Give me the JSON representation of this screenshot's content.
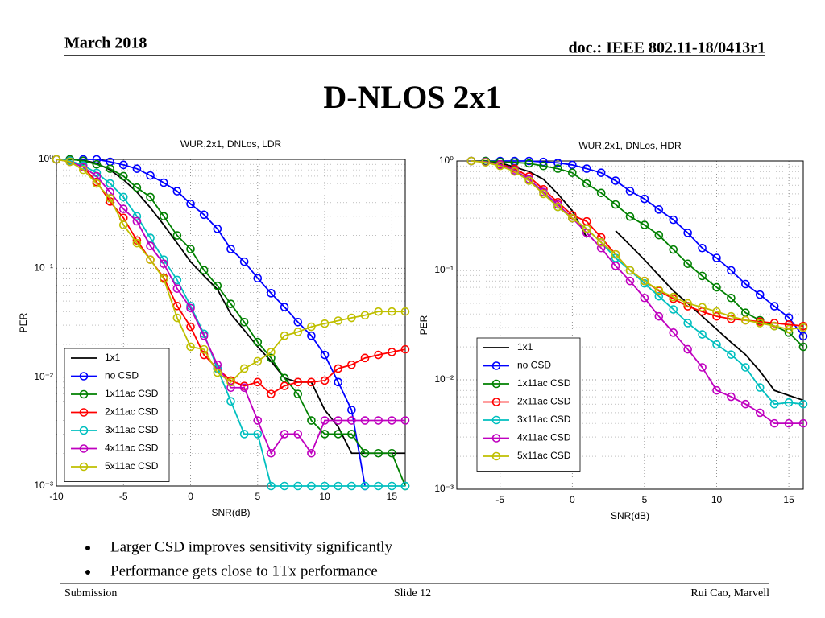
{
  "header": {
    "date": "March 2018",
    "doc": "doc.: IEEE 802.11-18/0413r1"
  },
  "title": "D-NLOS 2x1",
  "chart_data": [
    {
      "type": "line",
      "title": "WUR,2x1, DNLos, LDR",
      "x_label": "SNR(dB)",
      "y_label": "PER",
      "yscale": "log",
      "grid": true,
      "legend": "lower left",
      "xlim": [
        -10,
        16
      ],
      "xticks": [
        -10,
        -5,
        0,
        5,
        10,
        15
      ],
      "ylim": [
        0.001,
        1
      ],
      "yticks": [
        {
          "value": 0.001,
          "label": "10⁻³"
        },
        {
          "value": 0.01,
          "label": "10⁻²"
        },
        {
          "value": 0.1,
          "label": "10⁻¹"
        },
        {
          "value": 1,
          "label": "10⁰"
        }
      ],
      "x": [
        -10,
        -9,
        -8,
        -7,
        -6,
        -5,
        -4,
        -3,
        -2,
        -1,
        0,
        1,
        2,
        3,
        4,
        5,
        6,
        7,
        8,
        9,
        10,
        11,
        12,
        13,
        14,
        15,
        16
      ],
      "series": [
        {
          "name": "1x1",
          "color": "#000000",
          "marker": "none",
          "values": [
            1,
            1,
            0.98,
            0.92,
            0.8,
            0.65,
            0.5,
            0.36,
            0.25,
            0.17,
            0.115,
            0.085,
            0.064,
            0.038,
            0.027,
            0.019,
            0.014,
            0.0098,
            0.009,
            0.009,
            0.005,
            0.0035,
            0.002,
            0.002,
            0.002,
            0.002,
            0.002
          ]
        },
        {
          "name": "no CSD",
          "color": "#0000ff",
          "marker": "circle",
          "values": [
            1,
            1,
            1,
            1,
            0.95,
            0.89,
            0.82,
            0.71,
            0.61,
            0.51,
            0.39,
            0.31,
            0.23,
            0.15,
            0.115,
            0.081,
            0.059,
            0.044,
            0.032,
            0.024,
            0.016,
            0.009,
            0.005,
            0.001,
            null,
            null,
            null
          ]
        },
        {
          "name": "1x11ac CSD",
          "color": "#008000",
          "marker": "circle",
          "values": [
            1,
            1,
            0.97,
            0.9,
            0.82,
            0.7,
            0.55,
            0.45,
            0.3,
            0.2,
            0.15,
            0.096,
            0.069,
            0.047,
            0.032,
            0.021,
            0.015,
            0.0098,
            0.007,
            0.004,
            0.003,
            0.003,
            0.003,
            0.002,
            0.002,
            0.002,
            0.001
          ]
        },
        {
          "name": "2x11ac CSD",
          "color": "#ff0000",
          "marker": "circle",
          "values": [
            1,
            0.97,
            0.85,
            0.62,
            0.41,
            0.29,
            0.18,
            0.12,
            0.082,
            0.045,
            0.029,
            0.016,
            0.012,
            0.0093,
            0.0083,
            0.009,
            0.007,
            0.0083,
            0.009,
            0.009,
            0.0093,
            0.012,
            0.013,
            0.015,
            0.016,
            0.017,
            0.018
          ]
        },
        {
          "name": "3x11ac CSD",
          "color": "#00bfbf",
          "marker": "circle",
          "values": [
            1,
            0.97,
            0.88,
            0.75,
            0.6,
            0.45,
            0.3,
            0.19,
            0.12,
            0.078,
            0.045,
            0.025,
            0.012,
            0.006,
            0.003,
            0.003,
            0.001,
            0.001,
            0.001,
            0.001,
            0.001,
            0.001,
            0.001,
            0.001,
            0.001,
            0.001,
            0.001
          ]
        },
        {
          "name": "4x11ac CSD",
          "color": "#bf00bf",
          "marker": "circle",
          "values": [
            1,
            0.95,
            0.85,
            0.7,
            0.5,
            0.35,
            0.27,
            0.16,
            0.11,
            0.065,
            0.043,
            0.024,
            0.013,
            0.008,
            0.008,
            0.004,
            0.002,
            0.003,
            0.003,
            0.002,
            0.004,
            0.004,
            0.004,
            0.004,
            0.004,
            0.004,
            0.004
          ]
        },
        {
          "name": "5x11ac CSD",
          "color": "#bfbf00",
          "marker": "circle",
          "values": [
            1,
            0.95,
            0.8,
            0.6,
            0.44,
            0.25,
            0.17,
            0.12,
            0.08,
            0.035,
            0.019,
            0.018,
            0.011,
            0.009,
            0.012,
            0.014,
            0.017,
            0.024,
            0.026,
            0.029,
            0.031,
            0.033,
            0.035,
            0.037,
            0.04,
            0.04,
            0.04
          ]
        }
      ]
    },
    {
      "type": "line",
      "title": "WUR,2x1, DNLos, HDR",
      "x_label": "SNR(dB)",
      "y_label": "PER",
      "yscale": "log",
      "grid": true,
      "legend": "lower left",
      "xlim": [
        -8,
        16
      ],
      "xticks": [
        -5,
        0,
        5,
        10,
        15
      ],
      "ylim": [
        0.001,
        1
      ],
      "yticks": [
        {
          "value": 0.001,
          "label": "10⁻³"
        },
        {
          "value": 0.01,
          "label": "10⁻²"
        },
        {
          "value": 0.1,
          "label": "10⁻¹"
        },
        {
          "value": 1,
          "label": "10⁰"
        }
      ],
      "x": [
        -7,
        -6,
        -5,
        -4,
        -3,
        -2,
        -1,
        0,
        1,
        2,
        3,
        4,
        5,
        6,
        7,
        8,
        9,
        10,
        11,
        12,
        13,
        14,
        15,
        16
      ],
      "series": [
        {
          "name": "1x1",
          "color": "#000000",
          "marker": "none",
          "values": [
            1,
            1,
            0.96,
            0.88,
            0.8,
            0.68,
            0.5,
            0.35,
            0.2,
            null,
            0.23,
            0.17,
            0.125,
            0.09,
            0.065,
            0.05,
            0.038,
            0.029,
            0.022,
            0.017,
            0.012,
            0.008,
            0.0072,
            0.0065
          ]
        },
        {
          "name": "no CSD",
          "color": "#0000ff",
          "marker": "circle",
          "values": [
            1,
            1,
            1,
            1,
            1,
            0.98,
            0.96,
            0.92,
            0.85,
            0.78,
            0.66,
            0.53,
            0.45,
            0.36,
            0.29,
            0.22,
            0.16,
            0.13,
            0.1,
            0.075,
            0.06,
            0.047,
            0.037,
            0.025
          ]
        },
        {
          "name": "1x11ac CSD",
          "color": "#008000",
          "marker": "circle",
          "values": [
            1,
            1,
            0.98,
            0.97,
            0.95,
            0.9,
            0.85,
            0.78,
            0.62,
            0.51,
            0.4,
            0.31,
            0.26,
            0.21,
            0.155,
            0.115,
            0.089,
            0.07,
            0.056,
            0.041,
            0.035,
            0.031,
            0.027,
            0.02
          ]
        },
        {
          "name": "2x11ac CSD",
          "color": "#ff0000",
          "marker": "circle",
          "values": [
            1,
            0.98,
            0.93,
            0.85,
            0.72,
            0.55,
            0.42,
            0.32,
            0.28,
            0.2,
            0.14,
            0.1,
            0.08,
            0.065,
            0.055,
            0.047,
            0.042,
            0.038,
            0.036,
            0.035,
            0.034,
            0.033,
            0.032,
            0.031
          ]
        },
        {
          "name": "3x11ac CSD",
          "color": "#00bfbf",
          "marker": "circle",
          "values": [
            1,
            0.98,
            0.92,
            0.82,
            0.68,
            0.52,
            0.38,
            0.3,
            0.24,
            0.18,
            0.13,
            0.1,
            0.076,
            0.058,
            0.044,
            0.033,
            0.026,
            0.021,
            0.017,
            0.013,
            0.0085,
            0.006,
            0.0062,
            0.006
          ]
        },
        {
          "name": "4x11ac CSD",
          "color": "#bf00bf",
          "marker": "circle",
          "values": [
            1,
            0.98,
            0.92,
            0.82,
            0.68,
            0.52,
            0.4,
            0.3,
            0.22,
            0.16,
            0.11,
            0.08,
            0.056,
            0.038,
            0.027,
            0.019,
            0.013,
            0.008,
            0.007,
            0.006,
            0.005,
            0.004,
            0.004,
            0.004
          ]
        },
        {
          "name": "5x11ac CSD",
          "color": "#bfbf00",
          "marker": "circle",
          "values": [
            1,
            0.97,
            0.9,
            0.8,
            0.66,
            0.5,
            0.38,
            0.3,
            0.24,
            0.18,
            0.14,
            0.1,
            0.08,
            0.066,
            0.057,
            0.05,
            0.046,
            0.042,
            0.038,
            0.035,
            0.033,
            0.031,
            0.029,
            0.03
          ]
        }
      ]
    }
  ],
  "bullets": [
    "Larger CSD improves sensitivity significantly",
    "Performance gets close to 1Tx performance"
  ],
  "footer": {
    "left": "Submission",
    "center": "Slide 12",
    "right": "Rui Cao, Marvell"
  }
}
